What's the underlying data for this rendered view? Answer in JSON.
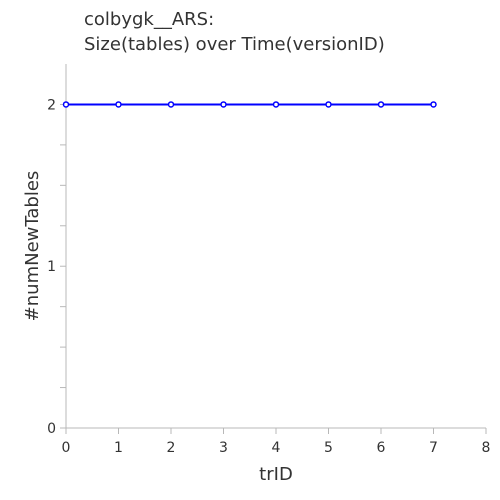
{
  "chart_data": {
    "type": "line",
    "title_lines": [
      "colbygk__ARS:",
      "Size(tables) over Time(versionID)"
    ],
    "xlabel": "trID",
    "ylabel": "#numNewTables",
    "xlim": [
      0,
      8
    ],
    "ylim": [
      0,
      2.25
    ],
    "x_ticks": [
      0,
      1,
      2,
      3,
      4,
      5,
      6,
      7,
      8
    ],
    "y_ticks_labeled": [
      0,
      1,
      2
    ],
    "y_ticks_minor": [
      0.25,
      0.5,
      0.75,
      1.25,
      1.5,
      1.75
    ],
    "grid": false,
    "series": [
      {
        "color": "#0000ff",
        "marker": "circle",
        "x": [
          0,
          1,
          2,
          3,
          4,
          5,
          6,
          7
        ],
        "y": [
          2,
          2,
          2,
          2,
          2,
          2,
          2,
          2
        ]
      }
    ]
  }
}
